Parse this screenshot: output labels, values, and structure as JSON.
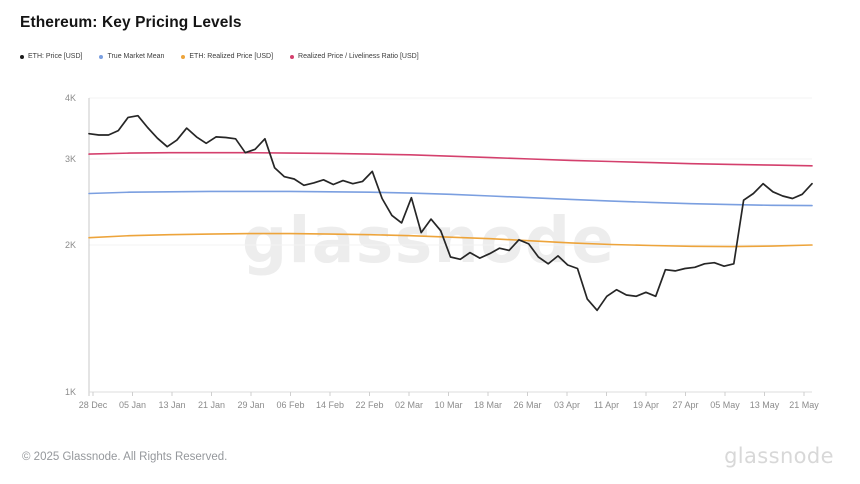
{
  "header": {
    "title": "Ethereum: Key Pricing Levels"
  },
  "legend": {
    "items": [
      {
        "label": "ETH: Price [USD]",
        "color": "#1a1a1a"
      },
      {
        "label": "True Market Mean",
        "color": "#7b9fe0"
      },
      {
        "label": "ETH: Realized Price [USD]",
        "color": "#eda43b"
      },
      {
        "label": "Realized Price / Liveliness Ratio [USD]",
        "color": "#d4406d"
      }
    ]
  },
  "watermark": "glassnode",
  "footer": {
    "copyright": "© 2025 Glassnode. All Rights Reserved.",
    "logo": "glassnode"
  },
  "chart_data": {
    "type": "line",
    "title": "Ethereum: Key Pricing Levels",
    "y_scale": "log",
    "ylim": [
      1000,
      4000
    ],
    "grid": "horizontal-faint",
    "legend_position": "top-left",
    "y_ticks": [
      {
        "label": "1K",
        "value": 1000
      },
      {
        "label": "2K",
        "value": 2000
      },
      {
        "label": "3K",
        "value": 3000
      },
      {
        "label": "4K",
        "value": 4000
      }
    ],
    "x_ticks": [
      "28 Dec",
      "05 Jan",
      "13 Jan",
      "21 Jan",
      "29 Jan",
      "06 Feb",
      "14 Feb",
      "22 Feb",
      "02 Mar",
      "10 Mar",
      "18 Mar",
      "26 Mar",
      "03 Apr",
      "11 Apr",
      "19 Apr",
      "27 Apr",
      "05 May",
      "13 May",
      "21 May"
    ],
    "x_range_note": "daily ETH data from 27 Dec 2024 to 24 May 2025, series values sampled every 2 days",
    "series": [
      {
        "name": "ETH: Price [USD]",
        "color": "#262626",
        "width": 1.7,
        "values": [
          3380,
          3360,
          3360,
          3430,
          3650,
          3680,
          3480,
          3310,
          3180,
          3280,
          3470,
          3330,
          3230,
          3330,
          3320,
          3300,
          3090,
          3140,
          3300,
          2880,
          2760,
          2730,
          2650,
          2680,
          2720,
          2660,
          2710,
          2670,
          2700,
          2830,
          2490,
          2300,
          2220,
          2500,
          2120,
          2260,
          2140,
          1890,
          1870,
          1930,
          1880,
          1920,
          1970,
          1950,
          2050,
          2010,
          1890,
          1830,
          1900,
          1820,
          1790,
          1550,
          1470,
          1570,
          1620,
          1580,
          1570,
          1600,
          1570,
          1780,
          1770,
          1790,
          1800,
          1830,
          1840,
          1810,
          1830,
          2470,
          2550,
          2670,
          2570,
          2520,
          2490,
          2540,
          2670
        ]
      },
      {
        "name": "True Market Mean",
        "color": "#7b9fe0",
        "width": 1.6,
        "values": [
          2550,
          2565,
          2570,
          2575,
          2575,
          2575,
          2570,
          2565,
          2555,
          2540,
          2520,
          2500,
          2480,
          2460,
          2445,
          2430,
          2420,
          2412,
          2408
        ]
      },
      {
        "name": "ETH: Realized Price [USD]",
        "color": "#eda43b",
        "width": 1.6,
        "values": [
          2070,
          2090,
          2100,
          2105,
          2110,
          2110,
          2105,
          2100,
          2090,
          2075,
          2060,
          2040,
          2020,
          2005,
          1995,
          1988,
          1985,
          1990,
          2000
        ]
      },
      {
        "name": "Realized Price / Liveliness Ratio [USD]",
        "color": "#d4406d",
        "width": 1.6,
        "values": [
          3070,
          3085,
          3090,
          3090,
          3090,
          3085,
          3080,
          3070,
          3060,
          3040,
          3020,
          3000,
          2980,
          2965,
          2950,
          2935,
          2925,
          2915,
          2905
        ]
      }
    ]
  }
}
